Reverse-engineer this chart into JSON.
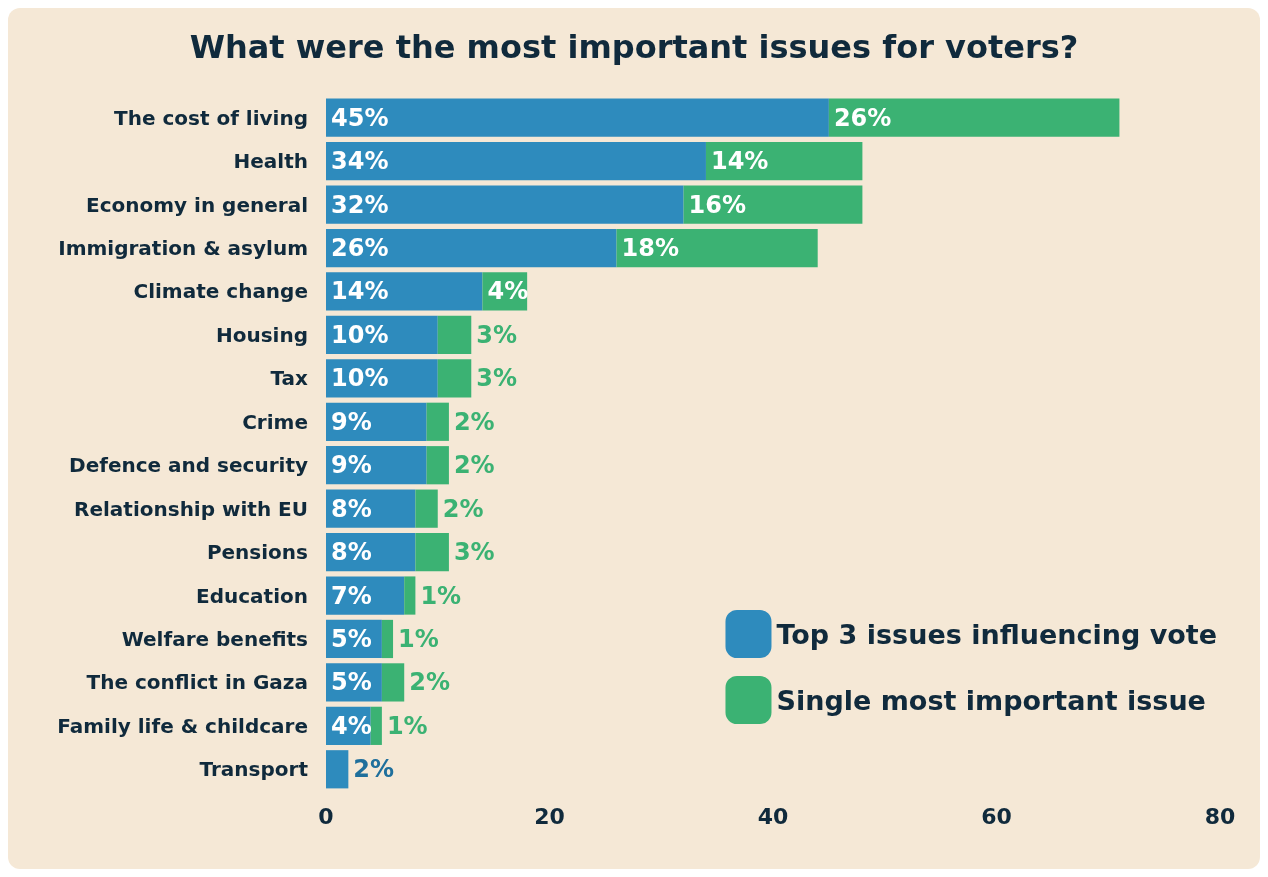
{
  "chart_data": {
    "type": "bar",
    "orientation": "horizontal",
    "stacked": true,
    "title": "What were the most important issues for voters?",
    "categories": [
      "The cost of living",
      "Health",
      "Economy in general",
      "Immigration & asylum",
      "Climate change",
      "Housing",
      "Tax",
      "Crime",
      "Defence and security",
      "Relationship with EU",
      "Pensions",
      "Education",
      "Welfare benefits",
      "The conflict in Gaza",
      "Family life & childcare",
      "Transport"
    ],
    "series": [
      {
        "name": "Top 3 issues influencing vote",
        "color": "#2e8bbd",
        "values": [
          45,
          34,
          32,
          26,
          14,
          10,
          10,
          9,
          9,
          8,
          8,
          7,
          5,
          5,
          4,
          2
        ],
        "value_labels": [
          "45%",
          "34%",
          "32%",
          "26%",
          "14%",
          "10%",
          "10%",
          "9%",
          "9%",
          "8%",
          "8%",
          "7%",
          "5%",
          "5%",
          "4%",
          "2%"
        ]
      },
      {
        "name": "Single most important issue",
        "color": "#3bb273",
        "values": [
          26,
          14,
          16,
          18,
          4,
          3,
          3,
          2,
          2,
          2,
          3,
          1,
          1,
          2,
          1,
          null
        ],
        "value_labels": [
          "26%",
          "14%",
          "16%",
          "18%",
          "4%",
          "3%",
          "3%",
          "2%",
          "2%",
          "2%",
          "3%",
          "1%",
          "1%",
          "2%",
          "1%",
          null
        ]
      }
    ],
    "xlim": [
      0,
      80
    ],
    "xticks": [
      0,
      20,
      40,
      60,
      80
    ],
    "grid": false,
    "legend": "bottom right"
  }
}
